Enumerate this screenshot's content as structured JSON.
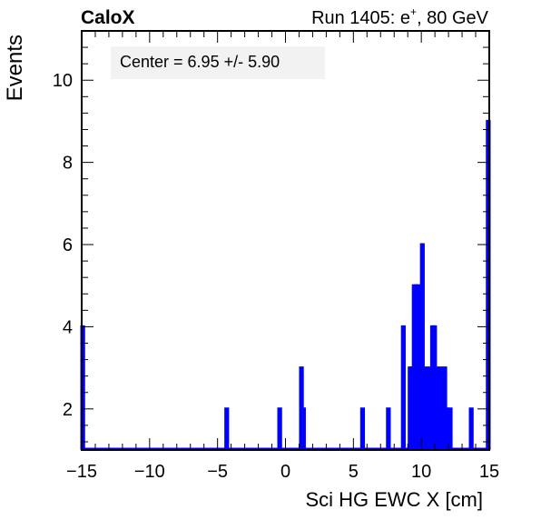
{
  "header": {
    "left_label": "CaloX",
    "right_label_prefix": "Run 1405: e",
    "right_label_sup": "+",
    "right_label_suffix": ", 80 GeV"
  },
  "annotation": "Center = 6.95 +/- 5.90",
  "colors": {
    "histogram": "#0000ff",
    "frame": "#000000",
    "annotation_box": "#f2f2f2"
  },
  "chart_data": {
    "type": "bar",
    "style": "step-histogram",
    "title": "",
    "xlabel": "Sci HG EWC X [cm]",
    "ylabel": "Events",
    "xlim": [
      -15,
      15
    ],
    "ylim": [
      1,
      11.2
    ],
    "grid": false,
    "x_ticks": [
      -15,
      -10,
      -5,
      0,
      5,
      10,
      15
    ],
    "x_tick_labels": [
      "−15",
      "−10",
      "−5",
      "0",
      "5",
      "10",
      "15"
    ],
    "y_ticks": [
      2,
      4,
      6,
      8,
      10
    ],
    "y_tick_labels": [
      "2",
      "4",
      "6",
      "8",
      "10"
    ],
    "bin_width": 0.15,
    "bins": [
      {
        "x": -15.0,
        "count": 4
      },
      {
        "x": -4.4,
        "count": 2
      },
      {
        "x": -0.5,
        "count": 2
      },
      {
        "x": 1.1,
        "count": 3
      },
      {
        "x": 1.25,
        "count": 2
      },
      {
        "x": 5.6,
        "count": 2
      },
      {
        "x": 7.5,
        "count": 2
      },
      {
        "x": 8.6,
        "count": 4
      },
      {
        "x": 9.1,
        "count": 3
      },
      {
        "x": 9.25,
        "count": 3
      },
      {
        "x": 9.4,
        "count": 5
      },
      {
        "x": 9.55,
        "count": 5
      },
      {
        "x": 9.7,
        "count": 5
      },
      {
        "x": 9.85,
        "count": 2
      },
      {
        "x": 10.0,
        "count": 6
      },
      {
        "x": 10.15,
        "count": 3
      },
      {
        "x": 10.3,
        "count": 2
      },
      {
        "x": 10.45,
        "count": 3
      },
      {
        "x": 10.75,
        "count": 4
      },
      {
        "x": 10.9,
        "count": 4
      },
      {
        "x": 11.05,
        "count": 3
      },
      {
        "x": 11.2,
        "count": 2
      },
      {
        "x": 11.35,
        "count": 3
      },
      {
        "x": 11.65,
        "count": 3
      },
      {
        "x": 11.8,
        "count": 2
      },
      {
        "x": 12.05,
        "count": 2
      },
      {
        "x": 13.6,
        "count": 2
      },
      {
        "x": 14.85,
        "count": 9
      }
    ]
  }
}
